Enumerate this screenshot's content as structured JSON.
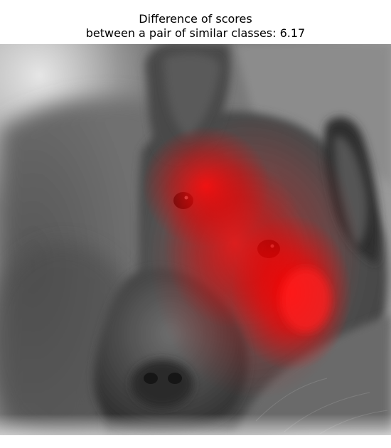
{
  "title": {
    "line1": "Difference of scores",
    "line2": "between a pair of similar classes: 6.17"
  },
  "image": {
    "subject": "grayscale photo of a dog's face with a red saliency heatmap overlay",
    "heatmap_color": "#ff0000",
    "base_tone": "grayscale"
  }
}
